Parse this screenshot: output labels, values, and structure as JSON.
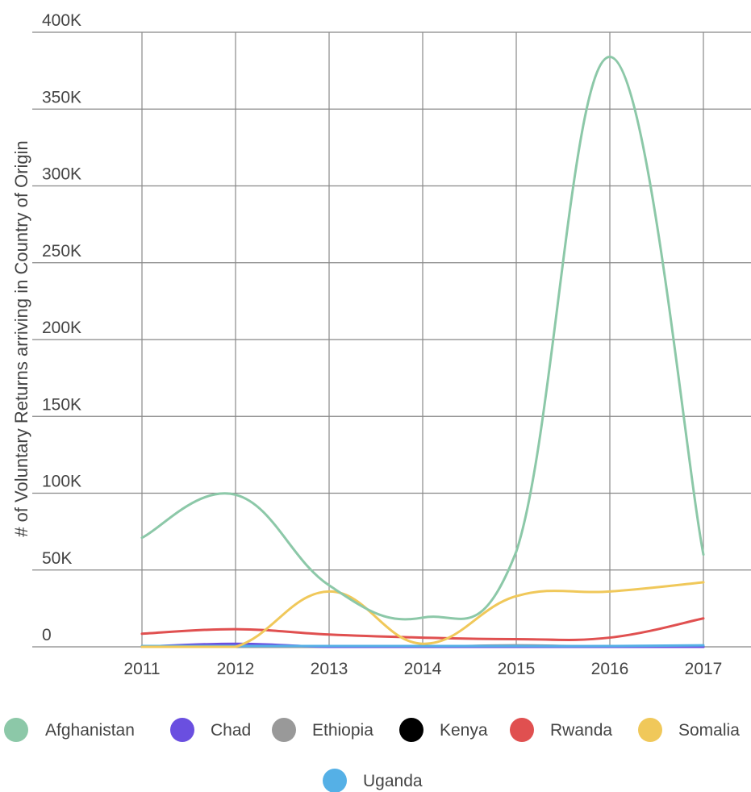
{
  "chart_data": {
    "type": "line",
    "ylabel": "# of Voluntary Returns arriving in Country of Origin",
    "xlabel": "",
    "x": [
      "2011",
      "2012",
      "2013",
      "2014",
      "2015",
      "2016",
      "2017"
    ],
    "ylim": [
      0,
      400000
    ],
    "yticks": [
      0,
      50000,
      100000,
      150000,
      200000,
      250000,
      300000,
      350000,
      400000
    ],
    "ytick_labels": [
      "0",
      "50K",
      "100K",
      "150K",
      "200K",
      "250K",
      "300K",
      "350K",
      "400K"
    ],
    "grid": true,
    "legend_position": "bottom",
    "series": [
      {
        "name": "Afghanistan",
        "color": "#8cc8a8",
        "values": [
          71000,
          99000,
          40000,
          19000,
          62000,
          384000,
          60000
        ]
      },
      {
        "name": "Chad",
        "color": "#6a4fe0",
        "values": [
          0,
          2000,
          0,
          0,
          0,
          0,
          0
        ]
      },
      {
        "name": "Ethiopia",
        "color": "#999999",
        "values": [
          0,
          0,
          0,
          0,
          1000,
          0,
          0
        ]
      },
      {
        "name": "Kenya",
        "color": "#000000",
        "values": [
          0,
          0,
          0,
          0,
          0,
          0,
          0
        ]
      },
      {
        "name": "Rwanda",
        "color": "#e05050",
        "values": [
          8500,
          11500,
          8000,
          6000,
          5000,
          6000,
          18500
        ]
      },
      {
        "name": "Somalia",
        "color": "#f0c85a",
        "values": [
          0,
          0,
          36000,
          2000,
          33000,
          36000,
          42000
        ]
      },
      {
        "name": "Uganda",
        "color": "#55b0e6",
        "values": [
          500,
          500,
          500,
          500,
          500,
          500,
          1000
        ]
      }
    ]
  }
}
